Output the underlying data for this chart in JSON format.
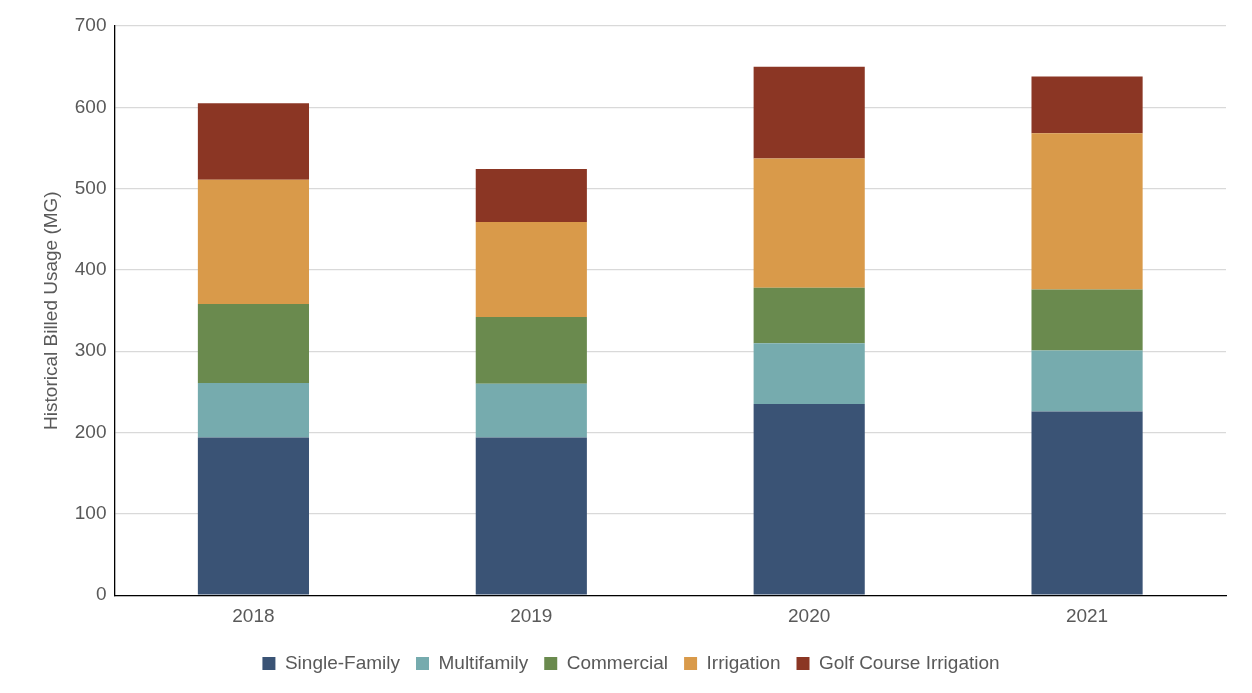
{
  "chart_data": {
    "type": "bar",
    "stacked": true,
    "ylabel": "Historical Billed Usage (MG)",
    "categories": [
      "2018",
      "2019",
      "2020",
      "2021"
    ],
    "series": [
      {
        "name": "Single-Family",
        "color": "#3a5375",
        "values": [
          194,
          194,
          235,
          226
        ]
      },
      {
        "name": "Multifamily",
        "color": "#76abae",
        "values": [
          67,
          66,
          75,
          75
        ]
      },
      {
        "name": "Commercial",
        "color": "#6a8a4e",
        "values": [
          97,
          82,
          68,
          75
        ]
      },
      {
        "name": "Irrigation",
        "color": "#d99a4a",
        "values": [
          153,
          117,
          159,
          192
        ]
      },
      {
        "name": "Golf Course Irrigation",
        "color": "#8b3624",
        "values": [
          94,
          65,
          113,
          70
        ]
      }
    ],
    "ylim": [
      0,
      700
    ],
    "yticks": [
      0,
      100,
      200,
      300,
      400,
      500,
      600,
      700
    ],
    "grid": "y",
    "legend": "bottom"
  }
}
